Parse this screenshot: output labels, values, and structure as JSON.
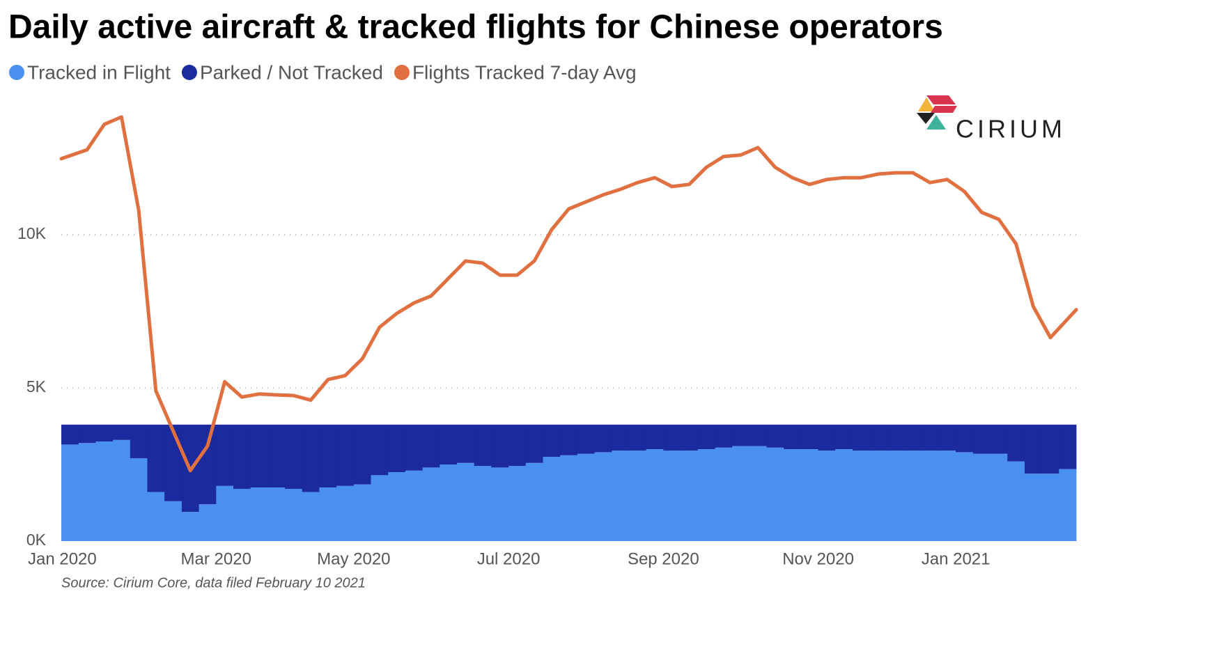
{
  "chart_data": {
    "type": "bar",
    "stacked": true,
    "title": "Daily active aircraft & tracked flights for Chinese operators",
    "source": "Source: Cirium Core, data filed February 10 2021",
    "logo": "CIRIUM",
    "categories": [
      "Jan 2020",
      null,
      null,
      null,
      null,
      null,
      null,
      null,
      null,
      "Mar 2020",
      null,
      null,
      null,
      null,
      null,
      null,
      null,
      "May 2020",
      null,
      null,
      null,
      null,
      null,
      null,
      null,
      null,
      "Jul 2020",
      null,
      null,
      null,
      null,
      null,
      null,
      null,
      null,
      "Sep 2020",
      null,
      null,
      null,
      null,
      null,
      null,
      null,
      null,
      "Nov 2020",
      null,
      null,
      null,
      null,
      null,
      null,
      null,
      "Jan 2021",
      null,
      null,
      null,
      null,
      null,
      null
    ],
    "series": [
      {
        "name": "Tracked in Flight",
        "color": "#4a90f0",
        "values": [
          3150,
          3200,
          3250,
          3300,
          2700,
          1600,
          1300,
          950,
          1200,
          1800,
          1700,
          1750,
          1750,
          1700,
          1600,
          1750,
          1800,
          1850,
          2150,
          2250,
          2300,
          2400,
          2500,
          2550,
          2450,
          2400,
          2450,
          2550,
          2750,
          2800,
          2850,
          2900,
          2950,
          2950,
          3000,
          2950,
          2950,
          3000,
          3050,
          3100,
          3100,
          3050,
          3000,
          3000,
          2950,
          3000,
          2950,
          2950,
          2950,
          2950,
          2950,
          2950,
          2900,
          2850,
          2850,
          2600,
          2200,
          2200,
          2350
        ]
      },
      {
        "name": "Parked / Not Tracked",
        "color": "#1b2a9c",
        "values": [
          650,
          600,
          550,
          500,
          1100,
          2200,
          2500,
          2850,
          2600,
          2000,
          2100,
          2050,
          2050,
          2100,
          2200,
          2050,
          2000,
          1950,
          1650,
          1550,
          1500,
          1400,
          1300,
          1250,
          1350,
          1400,
          1350,
          1250,
          1050,
          1000,
          950,
          900,
          850,
          850,
          800,
          850,
          850,
          800,
          750,
          700,
          700,
          750,
          800,
          800,
          850,
          800,
          850,
          850,
          850,
          850,
          850,
          850,
          900,
          950,
          950,
          1200,
          1600,
          1600,
          1450
        ]
      },
      {
        "name": "Flights Tracked 7-day Avg",
        "color": "#e07040",
        "type": "line",
        "values": [
          12480,
          12770,
          13600,
          13840,
          10800,
          4900,
          3600,
          2300,
          3100,
          5200,
          4700,
          4800,
          4770,
          4750,
          4600,
          5270,
          5400,
          5950,
          6980,
          7430,
          7770,
          8000,
          8570,
          9140,
          9070,
          8680,
          8680,
          9140,
          10160,
          10840,
          11070,
          11300,
          11480,
          11700,
          11860,
          11570,
          11640,
          12200,
          12550,
          12600,
          12840,
          12200,
          11860,
          11640,
          11800,
          11860,
          11860,
          11980,
          12020,
          12020,
          11700,
          11800,
          11410,
          10730,
          10500,
          9700,
          7660,
          6640,
          7550
        ]
      }
    ],
    "ylim": [
      0,
      14000
    ],
    "yticks": [
      {
        "value": 0,
        "label": "0K"
      },
      {
        "value": 5000,
        "label": "5K"
      },
      {
        "value": 10000,
        "label": "10K"
      }
    ],
    "grid": true
  }
}
